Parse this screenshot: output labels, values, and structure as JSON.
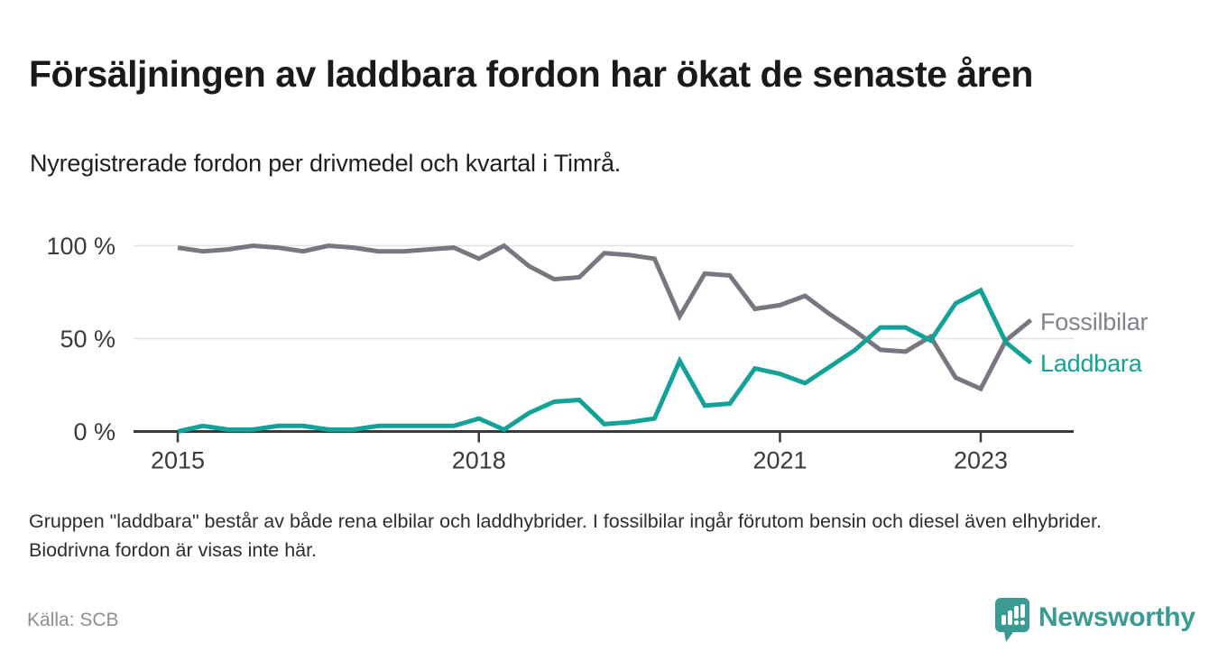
{
  "header": {
    "title": "Försäljningen av laddbara fordon har ökat de senaste åren",
    "subtitle": "Nyregistrerade fordon per drivmedel och kvartal i Timrå."
  },
  "footer": {
    "footnote": "Gruppen \"laddbara\" består av både rena elbilar och laddhybrider. I fossilbilar ingår förutom bensin och diesel även elhybrider. Biodrivna fordon är visas inte här.",
    "source": "Källa: SCB",
    "logo_text": "Newsworthy",
    "logo_icon": "bar-chart-speech-bubble-icon"
  },
  "colors": {
    "fossil_line": "#787680",
    "laddbara_line": "#12a297",
    "fossil_label": "#82808a",
    "laddbara_label": "#12a297",
    "axis": "#3a3a3a",
    "gridline": "#e2e2e2",
    "logo_teal": "#399b94"
  },
  "chart_data": {
    "type": "line",
    "title": "Försäljningen av laddbara fordon har ökat de senaste åren",
    "subtitle": "Nyregistrerade fordon per drivmedel och kvartal i Timrå.",
    "xlabel": "",
    "ylabel": "",
    "ylim": [
      0,
      100
    ],
    "grid": "horizontal",
    "legend_position": "right-of-line-ends",
    "x_labels": [
      "2015Q1",
      "2015Q2",
      "2015Q3",
      "2015Q4",
      "2016Q1",
      "2016Q2",
      "2016Q3",
      "2016Q4",
      "2017Q1",
      "2017Q2",
      "2017Q3",
      "2017Q4",
      "2018Q1",
      "2018Q2",
      "2018Q3",
      "2018Q4",
      "2019Q1",
      "2019Q2",
      "2019Q3",
      "2019Q4",
      "2020Q1",
      "2020Q2",
      "2020Q3",
      "2020Q4",
      "2021Q1",
      "2021Q2",
      "2021Q3",
      "2021Q4",
      "2022Q1",
      "2022Q2",
      "2022Q3",
      "2022Q4",
      "2023Q1",
      "2023Q2",
      "2023Q3"
    ],
    "yticks": [
      {
        "value": 0,
        "label": "0 %"
      },
      {
        "value": 50,
        "label": "50 %"
      },
      {
        "value": 100,
        "label": "100 %"
      }
    ],
    "xticks": [
      {
        "index": 0,
        "label": "2015"
      },
      {
        "index": 12,
        "label": "2018"
      },
      {
        "index": 24,
        "label": "2021"
      },
      {
        "index": 32,
        "label": "2023"
      }
    ],
    "series": [
      {
        "name": "Fossilbilar",
        "color": "#787680",
        "values": [
          99,
          97,
          98,
          100,
          99,
          97,
          100,
          99,
          97,
          97,
          98,
          99,
          93,
          100,
          89,
          82,
          83,
          96,
          95,
          93,
          62,
          85,
          84,
          66,
          68,
          73,
          63,
          54,
          44,
          43,
          51,
          29,
          23,
          49,
          60
        ]
      },
      {
        "name": "Laddbara",
        "color": "#12a297",
        "values": [
          0,
          3,
          1,
          1,
          3,
          3,
          1,
          1,
          3,
          3,
          3,
          3,
          7,
          1,
          10,
          16,
          17,
          4,
          5,
          7,
          38,
          14,
          15,
          34,
          31,
          26,
          35,
          44,
          56,
          56,
          49,
          69,
          76,
          48,
          37
        ]
      }
    ]
  }
}
